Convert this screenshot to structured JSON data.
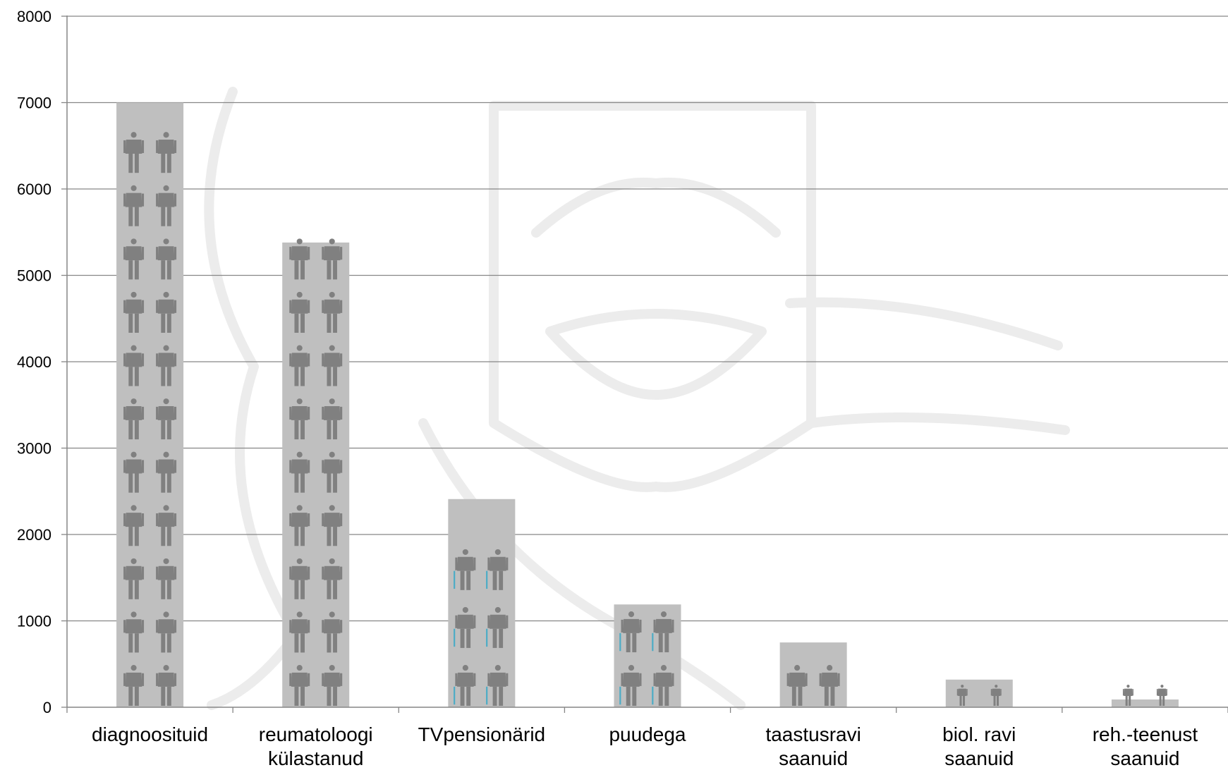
{
  "chart_data": {
    "type": "bar",
    "title": "",
    "xlabel": "",
    "ylabel": "",
    "ylim": [
      0,
      8000
    ],
    "yticks": [
      0,
      1000,
      2000,
      3000,
      4000,
      5000,
      6000,
      7000,
      8000
    ],
    "grid": true,
    "legend": "none",
    "categories": [
      [
        "diagnoosituid"
      ],
      [
        "reumatoloogi",
        "külastanud"
      ],
      [
        "TVpensionärid"
      ],
      [
        "puudega"
      ],
      [
        "taastusravi",
        "saanuid"
      ],
      [
        "biol. ravi",
        "saanuid"
      ],
      [
        "reh.-teenust",
        "saanuid"
      ]
    ],
    "values": [
      7000,
      5380,
      2410,
      1190,
      750,
      320,
      90
    ],
    "colors": {
      "bar": "#bfbfbf",
      "person_icon": "#808080",
      "cane": "#4bacc6",
      "grid": "#868686",
      "axis": "#868686",
      "watermark": "#ececec"
    },
    "icons": {
      "figure": "person-icon",
      "cane_figure": "person-with-cane-icon",
      "watermark": "lion-watermark"
    }
  }
}
